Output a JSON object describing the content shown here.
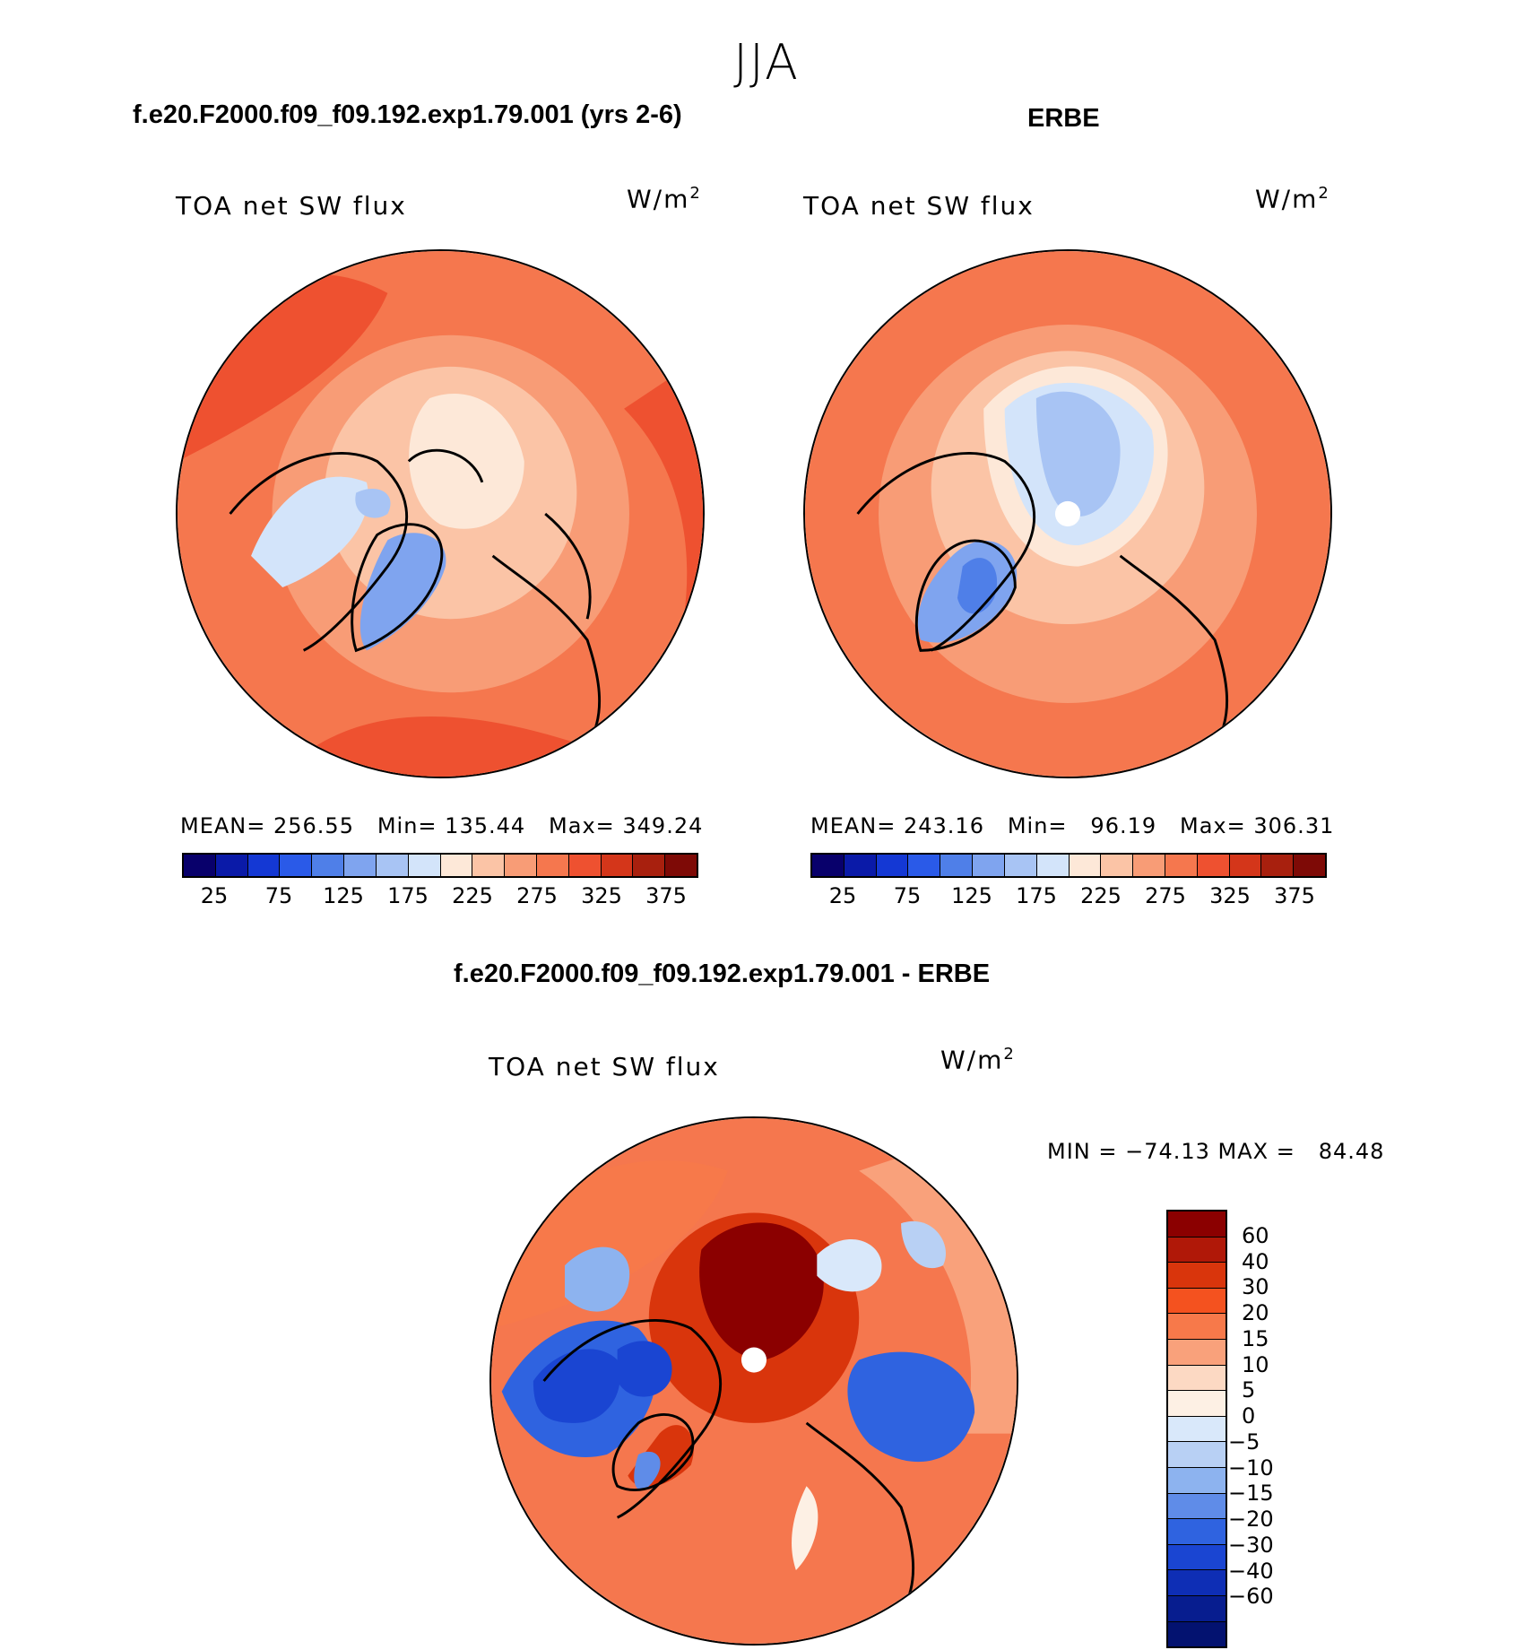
{
  "season": "JJA",
  "top_left": {
    "case_title": "f.e20.F2000.f09_f09.192.exp1.79.001 (yrs 2-6)",
    "field": "TOA net SW flux",
    "units_base": "W/m",
    "units_exp": "2",
    "stats": "MEAN= 256.55   Min= 135.44   Max= 349.24"
  },
  "top_right": {
    "case_title": "ERBE",
    "field": "TOA net SW flux",
    "units_base": "W/m",
    "units_exp": "2",
    "stats": "MEAN= 243.16   Min=   96.19   Max= 306.31"
  },
  "top_colorbar": {
    "colors": [
      "#08006b",
      "#0a1aa8",
      "#1438d4",
      "#2a5ae8",
      "#4f7fe8",
      "#7fa4ef",
      "#a8c4f4",
      "#d3e4fa",
      "#fde8d8",
      "#fbc4a6",
      "#f89c76",
      "#f5774e",
      "#ee5130",
      "#d4361a",
      "#a8200e",
      "#7e0a06"
    ],
    "labels": [
      "25",
      "75",
      "125",
      "175",
      "225",
      "275",
      "325",
      "375"
    ]
  },
  "bottom": {
    "case_title": "f.e20.F2000.f09_f09.192.exp1.79.001 - ERBE",
    "field": "TOA net SW flux",
    "units_base": "W/m",
    "units_exp": "2",
    "stats": "MIN = −74.13 MAX =   84.48"
  },
  "diff_colorbar": {
    "colors": [
      "#8b0000",
      "#b01808",
      "#d9350c",
      "#f4521f",
      "#f7794a",
      "#f9a17b",
      "#fcd9c3",
      "#fdf0e4",
      "#d9e8fa",
      "#b8d0f4",
      "#8db3ef",
      "#5f8ce8",
      "#2f63e0",
      "#1a45d2",
      "#0e2eb5",
      "#071d8f",
      "#031270"
    ],
    "labels": [
      "60",
      "40",
      "30",
      "20",
      "15",
      "10",
      "5",
      "0",
      "−5",
      "−10",
      "−15",
      "−20",
      "−30",
      "−40",
      "−60"
    ]
  }
}
